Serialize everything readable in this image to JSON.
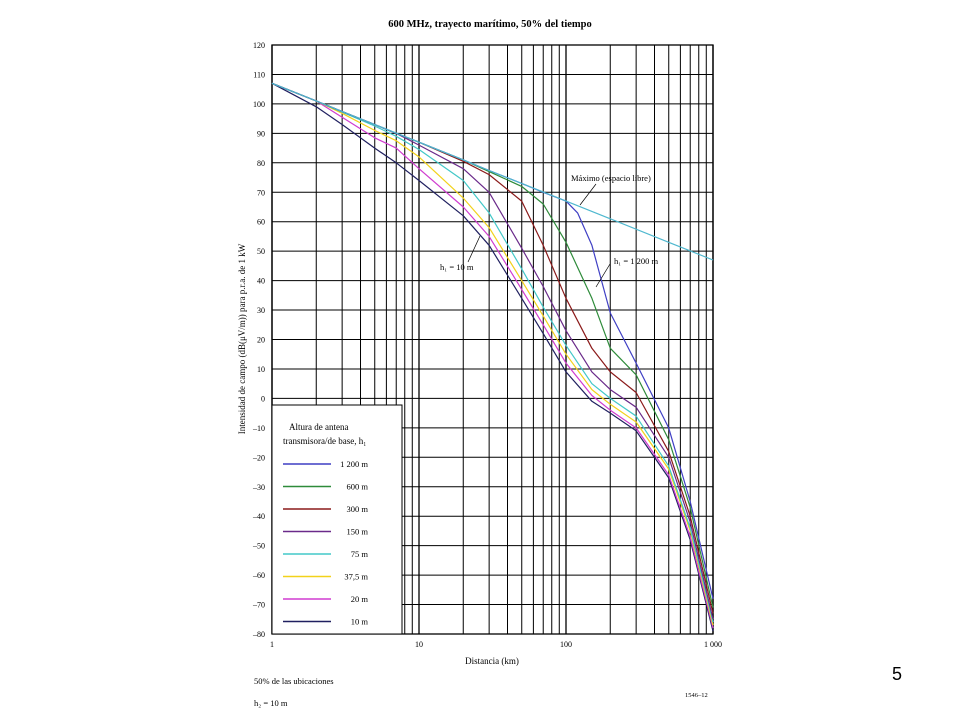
{
  "slide_number": "5",
  "footer": {
    "locations": "50% de las ubicaciones",
    "h2": "h₂ = 10 m",
    "figure_id": "1546–12"
  },
  "chart_data": {
    "type": "line",
    "title": "600 MHz, trayecto marítimo, 50% del tiempo",
    "xlabel": "Distancia (km)",
    "ylabel": "Intensidad de campo (dB(μV/m)) para p.r.a. de 1 kW",
    "x_scale": "log",
    "xlim": [
      1,
      1000
    ],
    "ylim": [
      -80,
      120
    ],
    "grid": true,
    "x_ticks": [
      {
        "value": 1,
        "label": "1"
      },
      {
        "value": 10,
        "label": "10"
      },
      {
        "value": 100,
        "label": "100"
      },
      {
        "value": 1000,
        "label": "1 000"
      }
    ],
    "y_ticks": [
      {
        "value": 120,
        "label": "120"
      },
      {
        "value": 110,
        "label": "110"
      },
      {
        "value": 100,
        "label": "100"
      },
      {
        "value": 90,
        "label": "90"
      },
      {
        "value": 80,
        "label": "80"
      },
      {
        "value": 70,
        "label": "70"
      },
      {
        "value": 60,
        "label": "60"
      },
      {
        "value": 50,
        "label": "50"
      },
      {
        "value": 40,
        "label": "40"
      },
      {
        "value": 30,
        "label": "30"
      },
      {
        "value": 20,
        "label": "20"
      },
      {
        "value": 10,
        "label": "10"
      },
      {
        "value": 0,
        "label": "0"
      },
      {
        "value": -10,
        "label": "–10"
      },
      {
        "value": -20,
        "label": "–20"
      },
      {
        "value": -30,
        "label": "–30"
      },
      {
        "value": -40,
        "label": "–40"
      },
      {
        "value": -50,
        "label": "–50"
      },
      {
        "value": -60,
        "label": "–60"
      },
      {
        "value": -70,
        "label": "–70"
      },
      {
        "value": -80,
        "label": "–80"
      }
    ],
    "legend": {
      "placement": "bottom-left",
      "title_line1": "Altura de antena",
      "title_line2": "transmisora/de base, h₁"
    },
    "annotations": [
      {
        "text": "Máximo (espacio libre)",
        "x": 220,
        "y": 74
      },
      {
        "text": "h₁ = 1 200 m",
        "x": 330,
        "y": 46
      },
      {
        "text": "h₁ = 10 m",
        "x": 18,
        "y": 44
      }
    ],
    "reference_series": {
      "name": "Máximo (espacio libre)",
      "color": "#4fb8cf",
      "x": [
        1,
        2,
        3,
        5,
        10,
        20,
        30,
        50,
        100,
        200,
        500,
        1000
      ],
      "y": [
        107,
        101,
        97.4,
        93,
        87,
        81,
        77.4,
        73,
        67,
        61,
        53,
        47
      ]
    },
    "series": [
      {
        "name": "1 200 m",
        "color": "#3f3fc4",
        "x": [
          1,
          2,
          3,
          5,
          7,
          10,
          20,
          30,
          50,
          70,
          100,
          120,
          150,
          200,
          300,
          500,
          700,
          1000
        ],
        "y": [
          107,
          101,
          97.4,
          93,
          90,
          87,
          81,
          77.4,
          73,
          70,
          67,
          63,
          52,
          29,
          12,
          -10,
          -35,
          -68
        ]
      },
      {
        "name": "600 m",
        "color": "#2e8b3a",
        "x": [
          1,
          2,
          3,
          5,
          7,
          10,
          20,
          30,
          50,
          70,
          100,
          150,
          200,
          300,
          500,
          700,
          1000
        ],
        "y": [
          107,
          101,
          97.4,
          93,
          90,
          87,
          81,
          77,
          72,
          66,
          53,
          34,
          17,
          8,
          -14,
          -37,
          -71
        ]
      },
      {
        "name": "300 m",
        "color": "#8b1a1a",
        "x": [
          1,
          2,
          3,
          5,
          7,
          10,
          20,
          30,
          50,
          70,
          100,
          150,
          200,
          300,
          500,
          700,
          1000
        ],
        "y": [
          107,
          101,
          97.4,
          93,
          90,
          87,
          80.5,
          76,
          67,
          52,
          34,
          17,
          9,
          2,
          -18,
          -40,
          -73
        ]
      },
      {
        "name": "150 m",
        "color": "#6a2a8a",
        "x": [
          1,
          2,
          3,
          5,
          7,
          10,
          20,
          30,
          50,
          70,
          100,
          150,
          200,
          300,
          500,
          700,
          1000
        ],
        "y": [
          107,
          101,
          97.4,
          93,
          90,
          86,
          78,
          70,
          51,
          38,
          23,
          9,
          3,
          -3,
          -20,
          -42,
          -75
        ]
      },
      {
        "name": "75 m",
        "color": "#42c8c8",
        "x": [
          1,
          2,
          3,
          5,
          7,
          10,
          20,
          30,
          50,
          70,
          100,
          150,
          200,
          300,
          500,
          700,
          1000
        ],
        "y": [
          107,
          101,
          97.2,
          92.5,
          89,
          84.5,
          74,
          63,
          44,
          31,
          18,
          5,
          0,
          -6,
          -23,
          -44,
          -76
        ]
      },
      {
        "name": "37,5 m",
        "color": "#f2d21b",
        "x": [
          1,
          2,
          3,
          5,
          7,
          10,
          20,
          30,
          50,
          70,
          100,
          150,
          200,
          300,
          500,
          700,
          1000
        ],
        "y": [
          107,
          101,
          96.8,
          91,
          87.5,
          82,
          68,
          58,
          40,
          28,
          15,
          3,
          -2,
          -8,
          -24,
          -45,
          -77
        ]
      },
      {
        "name": "20 m",
        "color": "#d03cd0",
        "x": [
          1,
          2,
          3,
          5,
          7,
          10,
          20,
          30,
          50,
          70,
          100,
          150,
          200,
          300,
          500,
          700,
          1000
        ],
        "y": [
          107,
          101,
          95.5,
          88.5,
          85,
          78,
          65,
          55,
          37,
          25,
          12,
          1,
          -4,
          -10,
          -26,
          -47,
          -78
        ]
      },
      {
        "name": "10 m",
        "color": "#202060",
        "x": [
          1,
          2,
          3,
          5,
          7,
          10,
          20,
          30,
          50,
          70,
          100,
          150,
          200,
          300,
          500,
          700,
          1000
        ],
        "y": [
          107,
          99,
          93,
          85,
          80,
          74,
          62,
          52,
          34,
          22,
          9,
          -1,
          -5,
          -11,
          -27,
          -48,
          -79
        ]
      }
    ]
  }
}
